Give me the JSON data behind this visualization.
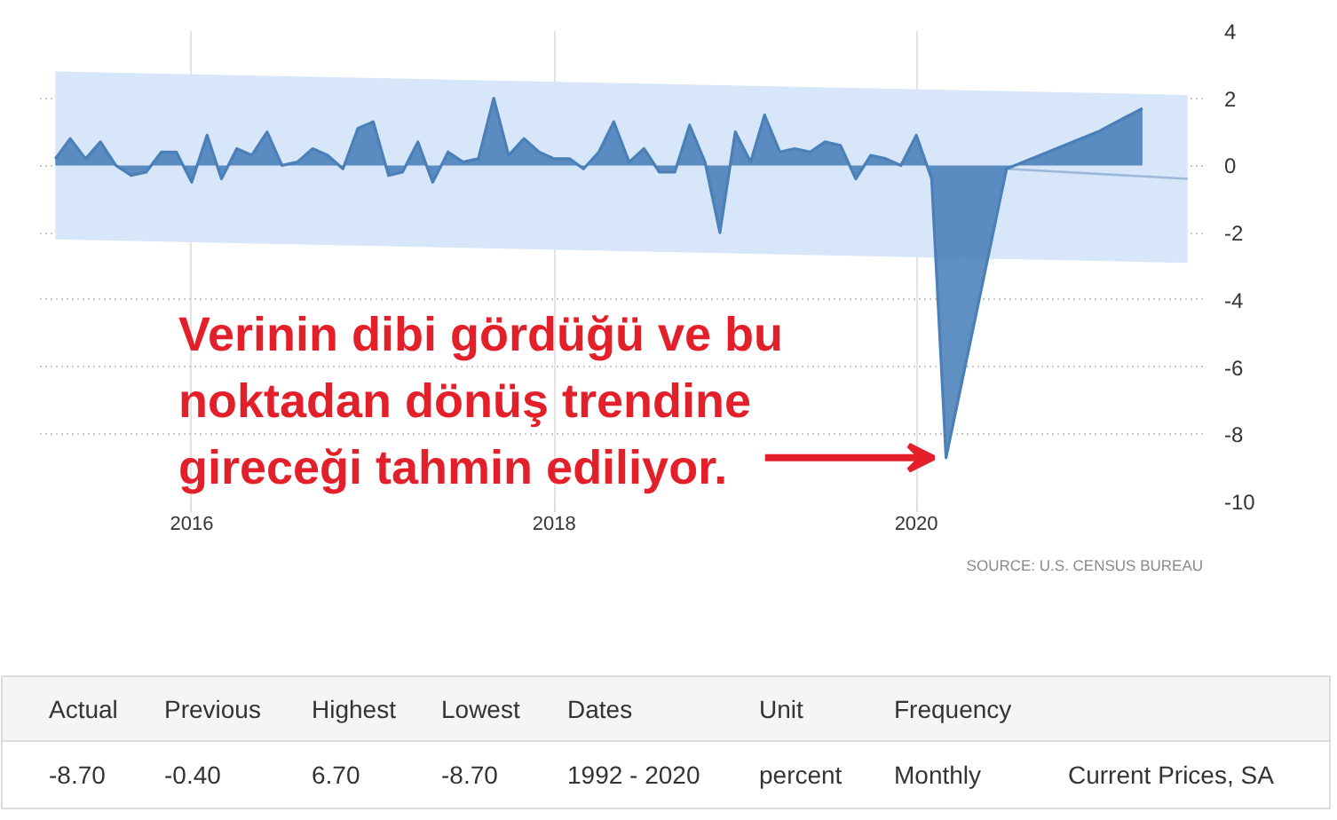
{
  "chart_data": [
    {
      "type": "area",
      "x": [
        "2015-04",
        "2015-05",
        "2015-06",
        "2015-07",
        "2015-08",
        "2015-09",
        "2015-10",
        "2015-11",
        "2015-12",
        "2016-01",
        "2016-02",
        "2016-03",
        "2016-04",
        "2016-05",
        "2016-06",
        "2016-07",
        "2016-08",
        "2016-09",
        "2016-10",
        "2016-11",
        "2016-12",
        "2017-01",
        "2017-02",
        "2017-03",
        "2017-04",
        "2017-05",
        "2017-06",
        "2017-07",
        "2017-08",
        "2017-09",
        "2017-10",
        "2017-11",
        "2017-12",
        "2018-01",
        "2018-02",
        "2018-03",
        "2018-04",
        "2018-05",
        "2018-06",
        "2018-07",
        "2018-08",
        "2018-09",
        "2018-10",
        "2018-11",
        "2018-12",
        "2019-01",
        "2019-02",
        "2019-03",
        "2019-04",
        "2019-05",
        "2019-06",
        "2019-07",
        "2019-08",
        "2019-09",
        "2019-10",
        "2019-11",
        "2019-12",
        "2020-01",
        "2020-02",
        "2020-03",
        "2020-07",
        "2021-01",
        "2021-04"
      ],
      "series": [
        {
          "type": "area",
          "color": "#d7e6f8",
          "x": [
            "2015-04",
            "2021-07"
          ],
          "values": [
            null,
            null
          ],
          "lower": [
            -2.2,
            -2.9
          ],
          "upper": [
            2.8,
            2.1
          ]
        },
        {
          "type": "line",
          "color": "#9db9d9",
          "x": [
            "2020-07",
            "2021-07"
          ],
          "values": [
            -0.1,
            -0.4
          ]
        },
        {
          "type": "area",
          "color": "#4a7fb8",
          "values": [
            0.2,
            0.8,
            0.2,
            0.7,
            0.0,
            -0.3,
            -0.2,
            0.4,
            0.4,
            -0.5,
            0.9,
            -0.4,
            0.5,
            0.3,
            1.0,
            0.0,
            0.1,
            0.5,
            0.3,
            -0.1,
            1.1,
            1.3,
            -0.3,
            -0.2,
            0.7,
            -0.5,
            0.4,
            0.1,
            0.2,
            2.0,
            0.3,
            0.8,
            0.4,
            0.2,
            0.2,
            -0.1,
            0.4,
            1.3,
            0.1,
            0.5,
            -0.2,
            -0.2,
            1.2,
            0.1,
            -2.0,
            1.0,
            0.1,
            1.5,
            0.4,
            0.5,
            0.4,
            0.7,
            0.6,
            -0.4,
            0.3,
            0.2,
            0.0,
            0.9,
            -0.4,
            -8.7,
            -0.1,
            1.0,
            1.7
          ]
        }
      ],
      "xlim": [
        "2015-03",
        "2021-08"
      ],
      "xticks": [
        "2016",
        "2018",
        "2020"
      ],
      "ylim": [
        -10,
        4
      ],
      "yticks": [
        4,
        2,
        0,
        -2,
        -4,
        -6,
        -8,
        -10
      ],
      "grid": true,
      "annotations": [
        {
          "text": "Verinin dibi gördüğü ve bu noktadan dönüş trendine gireceği tahmin ediliyor.",
          "x": "2020-03",
          "y": -8.7
        },
        "SOURCE: U.S. CENSUS BUREAU"
      ]
    },
    {
      "type": "other",
      "categories": [
        "Actual",
        "Previous",
        "Highest",
        "Lowest",
        "Dates",
        "Unit",
        "Frequency",
        null
      ],
      "value_labels": [
        "-8.70",
        "-0.40",
        "6.70",
        "-8.70",
        "1992 - 2020",
        "percent",
        "Monthly",
        "Current Prices, SA"
      ]
    }
  ]
}
